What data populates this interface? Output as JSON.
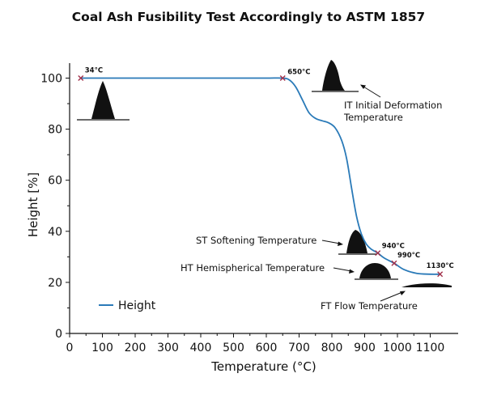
{
  "chart_data": {
    "type": "line",
    "title": "Coal Ash Fusibility Test Accordingly to ASTM 1857",
    "xlabel": "Temperature (°C)",
    "ylabel": "Height [%]",
    "xlim": [
      0,
      1150
    ],
    "ylim": [
      0,
      105
    ],
    "xticks": [
      0,
      100,
      200,
      300,
      400,
      500,
      600,
      700,
      800,
      900,
      1000,
      1100
    ],
    "yticks": [
      0,
      20,
      40,
      60,
      80,
      100
    ],
    "grid": false,
    "legend_position": "bottom-left",
    "color": "#2a7ab8",
    "series": [
      {
        "name": "Height",
        "x": [
          34,
          100,
          200,
          300,
          400,
          500,
          600,
          650,
          670,
          690,
          710,
          730,
          750,
          770,
          790,
          810,
          830,
          845,
          860,
          875,
          890,
          905,
          920,
          940,
          960,
          990,
          1020,
          1060,
          1100,
          1130
        ],
        "y": [
          100,
          100,
          100,
          100,
          100,
          100,
          100,
          100,
          99.3,
          96.5,
          91.5,
          86.5,
          84.2,
          83.3,
          82.5,
          80.5,
          75.5,
          68.5,
          57,
          46,
          39,
          35,
          33,
          31.5,
          29.5,
          27.5,
          25,
          23.5,
          23.2,
          23.2
        ]
      }
    ],
    "markers": [
      {
        "x": 34,
        "y": 100,
        "label": "34°C"
      },
      {
        "x": 650,
        "y": 100,
        "label": "650°C"
      },
      {
        "x": 940,
        "y": 31.5,
        "label": "940°C"
      },
      {
        "x": 990,
        "y": 27.5,
        "label": "990°C"
      },
      {
        "x": 1130,
        "y": 23.2,
        "label": "1130°C"
      }
    ],
    "annotations": [
      {
        "id": "it",
        "lines": [
          "IT Initial Deformation",
          "Temperature"
        ]
      },
      {
        "id": "st",
        "lines": [
          "ST Softening Temperature"
        ]
      },
      {
        "id": "ht",
        "lines": [
          "HT Hemispherical Temperature"
        ]
      },
      {
        "id": "ft",
        "lines": [
          "FT Flow Temperature"
        ]
      }
    ]
  }
}
